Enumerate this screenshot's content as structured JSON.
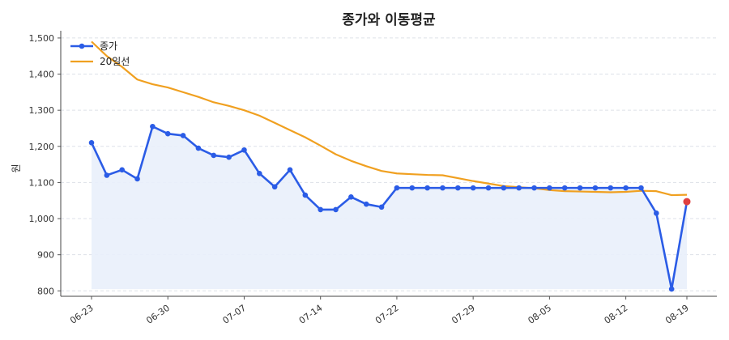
{
  "chart_data": {
    "type": "line",
    "title": "종가와 이동평균",
    "xlabel": "",
    "ylabel": "원",
    "ylim": [
      785,
      1520
    ],
    "yticks": [
      800,
      900,
      1000,
      1100,
      1200,
      1300,
      1400,
      1500
    ],
    "ytick_labels": [
      "800",
      "900",
      "1,000",
      "1,100",
      "1,200",
      "1,300",
      "1,400",
      "1,500"
    ],
    "xticks": [
      "06-23",
      "06-30",
      "07-07",
      "07-14",
      "07-22",
      "07-29",
      "08-05",
      "08-12",
      "08-19"
    ],
    "grid": "horizontal dashed",
    "legend_position": "top-left",
    "colors": {
      "close": "#2b5ce6",
      "ma20": "#f0a020",
      "fill": "#e9effb",
      "last_point": "#e04040"
    },
    "x": [
      "06-23",
      "06-24",
      "06-25",
      "06-26",
      "06-27",
      "06-30",
      "07-01",
      "07-02",
      "07-03",
      "07-04",
      "07-07",
      "07-08",
      "07-09",
      "07-10",
      "07-11",
      "07-14",
      "07-15",
      "07-16",
      "07-17",
      "07-18",
      "07-22",
      "07-23",
      "07-24",
      "07-25",
      "07-28",
      "07-29",
      "07-30",
      "07-31",
      "08-01",
      "08-04",
      "08-05",
      "08-06",
      "08-07",
      "08-08",
      "08-11",
      "08-12",
      "08-13",
      "08-14",
      "08-18",
      "08-19"
    ],
    "series": [
      {
        "name": "종가",
        "values": [
          1210,
          1120,
          1135,
          1110,
          1255,
          1235,
          1230,
          1195,
          1175,
          1170,
          1190,
          1125,
          1088,
          1135,
          1065,
          1025,
          1025,
          1060,
          1040,
          1032,
          1085,
          1085,
          1085,
          1085,
          1085,
          1085,
          1085,
          1085,
          1085,
          1085,
          1085,
          1085,
          1085,
          1085,
          1085,
          1085,
          1085,
          1015,
          805,
          1047
        ]
      },
      {
        "name": "20일선",
        "values": [
          1490,
          1450,
          1420,
          1385,
          1372,
          1363,
          1350,
          1337,
          1322,
          1312,
          1300,
          1285,
          1265,
          1245,
          1225,
          1202,
          1178,
          1160,
          1145,
          1132,
          1125,
          1123,
          1121,
          1120,
          1112,
          1104,
          1097,
          1090,
          1087,
          1084,
          1079,
          1076,
          1075,
          1074,
          1073,
          1074,
          1077,
          1076,
          1065,
          1066
        ]
      }
    ]
  }
}
